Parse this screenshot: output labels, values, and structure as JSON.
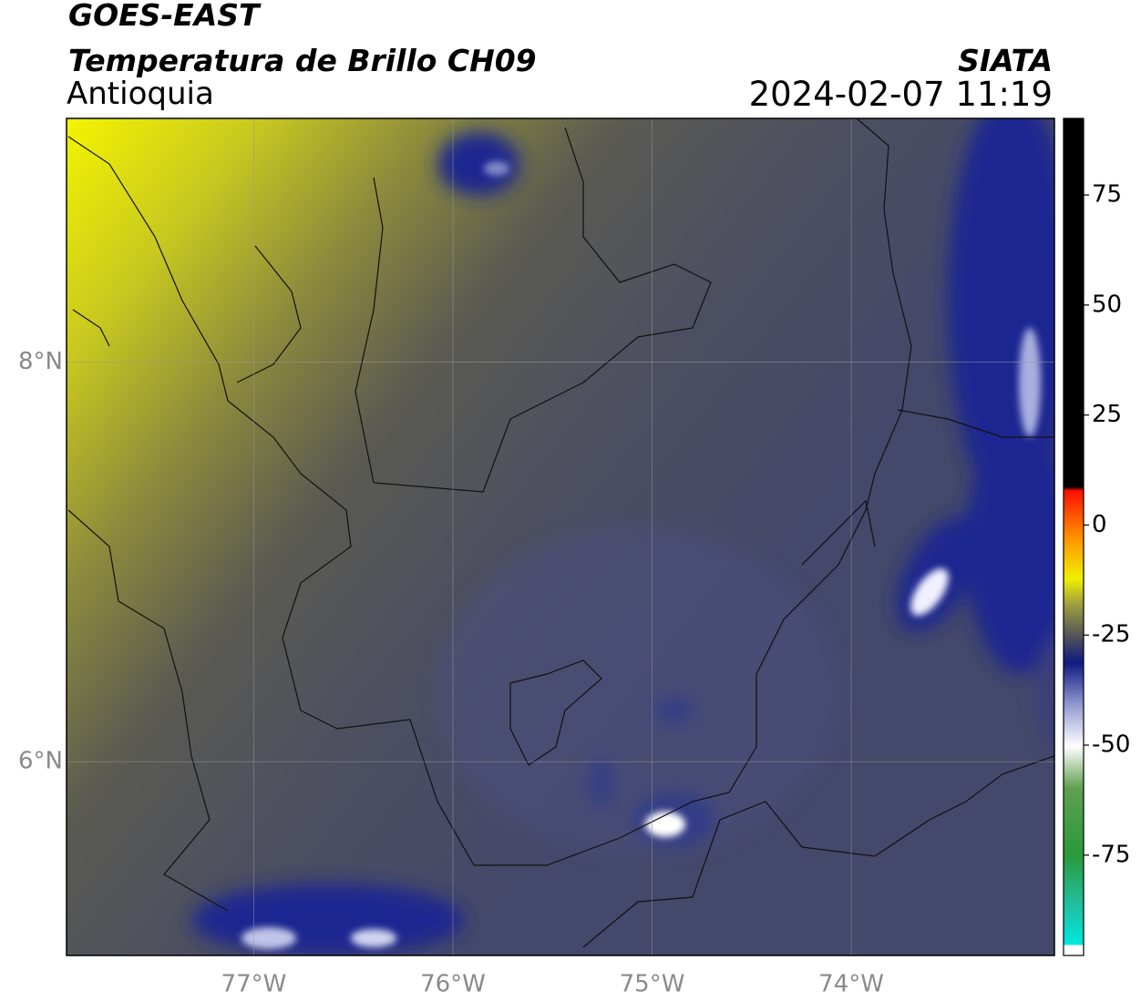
{
  "header": {
    "satellite": "GOES-EAST",
    "product": "Temperatura de Brillo CH09",
    "region": "Antioquia",
    "agency": "SIATA",
    "datetime": "2024-02-07 11:19"
  },
  "map": {
    "lon_range": [
      -77.94,
      -72.98
    ],
    "lat_range": [
      5.03,
      9.22
    ],
    "lon_ticks": [
      {
        "value": -77,
        "label": "77°W"
      },
      {
        "value": -76,
        "label": "76°W"
      },
      {
        "value": -75,
        "label": "75°W"
      },
      {
        "value": -74,
        "label": "74°W"
      }
    ],
    "lat_ticks": [
      {
        "value": 8,
        "label": "8°N"
      },
      {
        "value": 6,
        "label": "6°N"
      }
    ],
    "grid": true
  },
  "colorbar": {
    "range": [
      -97.8,
      92.4
    ],
    "ticks": [
      75,
      50,
      25,
      0,
      -25,
      -50,
      -75
    ]
  }
}
